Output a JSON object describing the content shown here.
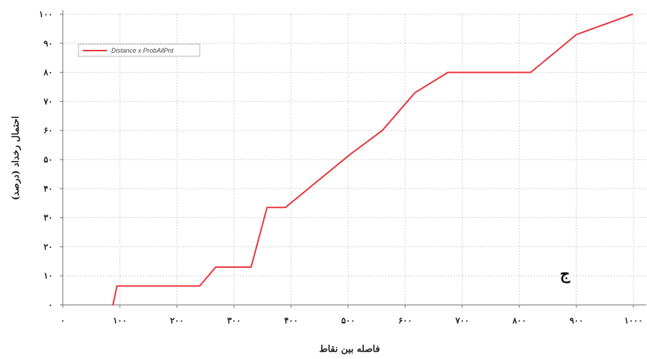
{
  "chart_data": {
    "type": "line",
    "title": "",
    "xlabel": "فاصله بین نقاط",
    "ylabel": "احتمال رخداد (درصد)",
    "xlim": [
      0,
      1000
    ],
    "ylim": [
      0,
      100
    ],
    "x_ticks": [
      {
        "value": 0,
        "label": "۰"
      },
      {
        "value": 100,
        "label": "۱۰۰"
      },
      {
        "value": 200,
        "label": "۲۰۰"
      },
      {
        "value": 300,
        "label": "۳۰۰"
      },
      {
        "value": 400,
        "label": "۴۰۰"
      },
      {
        "value": 500,
        "label": "۵۰۰"
      },
      {
        "value": 600,
        "label": "۶۰۰"
      },
      {
        "value": 700,
        "label": "۷۰۰"
      },
      {
        "value": 800,
        "label": "۸۰۰"
      },
      {
        "value": 900,
        "label": "۹۰۰"
      },
      {
        "value": 1000,
        "label": "۱۰۰۰"
      }
    ],
    "y_ticks": [
      {
        "value": 0,
        "label": "۰"
      },
      {
        "value": 10,
        "label": "۱۰"
      },
      {
        "value": 20,
        "label": "۲۰"
      },
      {
        "value": 30,
        "label": "۳۰"
      },
      {
        "value": 40,
        "label": "۴۰"
      },
      {
        "value": 50,
        "label": "۵۰"
      },
      {
        "value": 60,
        "label": "۶۰"
      },
      {
        "value": 70,
        "label": "۷۰"
      },
      {
        "value": 80,
        "label": "۸۰"
      },
      {
        "value": 90,
        "label": "۹۰"
      },
      {
        "value": 100,
        "label": "۱۰۰"
      }
    ],
    "grid": true,
    "legend_position": "top-left",
    "annotation": "ج",
    "series": [
      {
        "name": "Distance x ProbAllPnt",
        "color": "#e8333a",
        "x": [
          88,
          95,
          240,
          268,
          330,
          358,
          390,
          505,
          560,
          617,
          675,
          820,
          900,
          998
        ],
        "y": [
          0,
          6.5,
          6.5,
          13,
          13,
          33.5,
          33.5,
          52,
          60,
          73,
          80,
          80,
          93,
          100
        ]
      }
    ]
  }
}
